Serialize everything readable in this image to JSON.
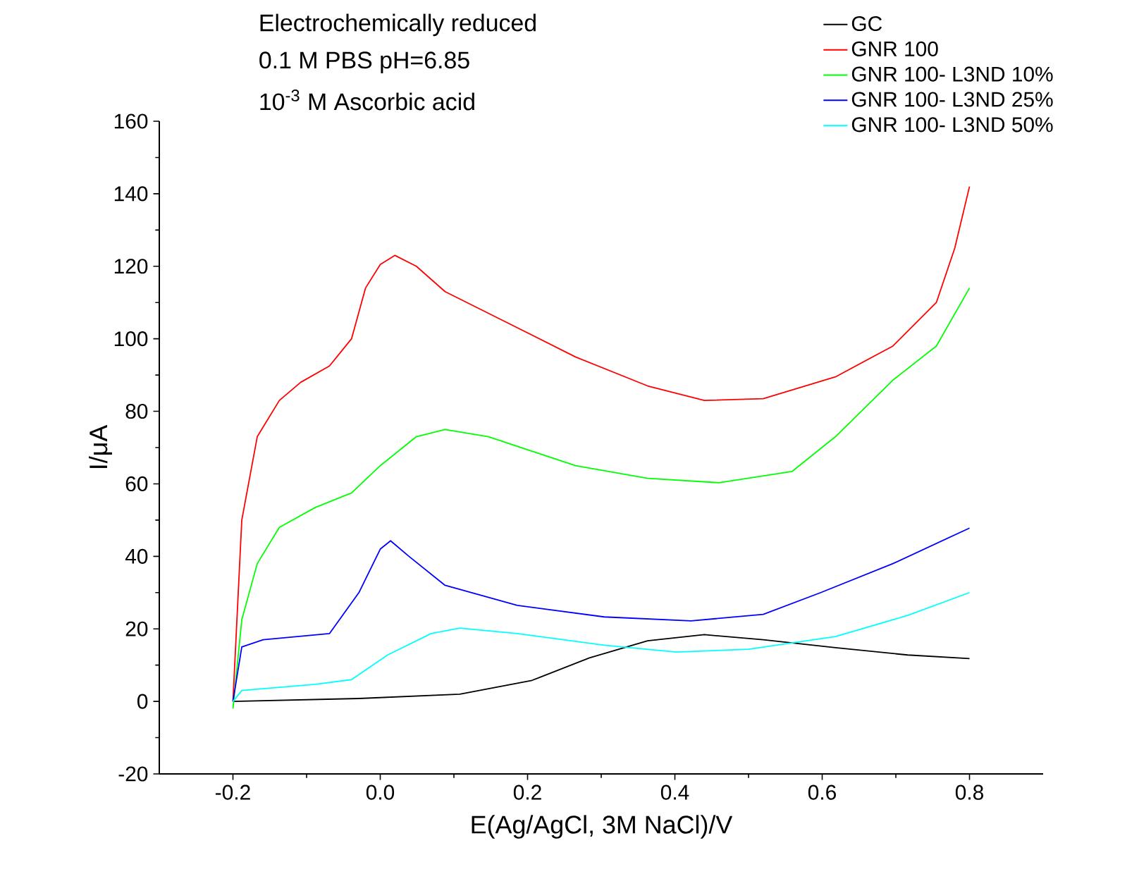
{
  "chart_data": {
    "type": "line",
    "xlabel": "E(Ag/AgCl, 3M NaCl)/V",
    "ylabel": "I/μA",
    "annotations": [
      "Electrochemically reduced",
      "0.1 M PBS pH=6.85",
      "10$^{-3}$ M Ascorbic acid"
    ],
    "xlim": [
      -0.3,
      0.9
    ],
    "ylim": [
      -20,
      160
    ],
    "xticks": [
      -0.2,
      {
        "value": 0,
        "label": "0.0"
      },
      0.2,
      0.4,
      0.6,
      0.8
    ],
    "yticks": [
      -20,
      0,
      20,
      40,
      60,
      80,
      100,
      120,
      140,
      160
    ],
    "legend": "top right",
    "series": [
      {
        "name": "GC",
        "color": "#000000",
        "x": [
          -0.2,
          -0.029,
          0.108,
          0.206,
          0.284,
          0.363,
          0.44,
          0.52,
          0.618,
          0.716,
          0.8
        ],
        "values": [
          0,
          0.8,
          2,
          5.8,
          12,
          16.7,
          18.4,
          17,
          14.8,
          12.8,
          11.8
        ]
      },
      {
        "name": "GNR 100",
        "color": "#ff0000",
        "x": [
          -0.2,
          -0.188,
          -0.167,
          -0.137,
          -0.108,
          -0.069,
          -0.039,
          -0.02,
          0,
          0.02,
          0.049,
          0.088,
          0.167,
          0.265,
          0.363,
          0.44,
          0.52,
          0.618,
          0.696,
          0.755,
          0.78,
          0.8
        ],
        "values": [
          0,
          50,
          73,
          83,
          88,
          92.5,
          100,
          114,
          120.5,
          123,
          120,
          113,
          105,
          95,
          87,
          83,
          83.5,
          89.5,
          98,
          110,
          125,
          142
        ]
      },
      {
        "name": "GNR 100- L3ND 10%",
        "color": "#00ff00",
        "x": [
          -0.2,
          -0.188,
          -0.167,
          -0.137,
          -0.088,
          -0.039,
          0,
          0.049,
          0.088,
          0.147,
          0.265,
          0.363,
          0.46,
          0.559,
          0.618,
          0.696,
          0.755,
          0.8
        ],
        "values": [
          -2,
          22.5,
          38,
          48,
          53.5,
          57.5,
          65,
          73,
          75,
          73,
          65,
          61.5,
          60.3,
          63.4,
          73,
          88.6,
          98,
          114
        ]
      },
      {
        "name": "GNR 100- L3ND 25%",
        "color": "#0000ff",
        "x": [
          -0.2,
          -0.188,
          -0.159,
          -0.069,
          -0.029,
          0,
          0.014,
          0.039,
          0.088,
          0.186,
          0.304,
          0.422,
          0.52,
          0.598,
          0.696,
          0.8
        ],
        "values": [
          0,
          15,
          17,
          18.7,
          30,
          42,
          44.3,
          40,
          32,
          26.5,
          23.3,
          22.2,
          24,
          30,
          38,
          47.8
        ]
      },
      {
        "name": "GNR 100- L3ND 50%",
        "color": "#00ffff",
        "x": [
          -0.2,
          -0.188,
          -0.088,
          -0.039,
          0.01,
          0.069,
          0.108,
          0.186,
          0.304,
          0.402,
          0.5,
          0.618,
          0.716,
          0.8
        ],
        "values": [
          0,
          3,
          4.7,
          6,
          12.8,
          18.7,
          20.2,
          18.7,
          15.5,
          13.6,
          14.4,
          17.9,
          23.7,
          30
        ]
      }
    ]
  }
}
